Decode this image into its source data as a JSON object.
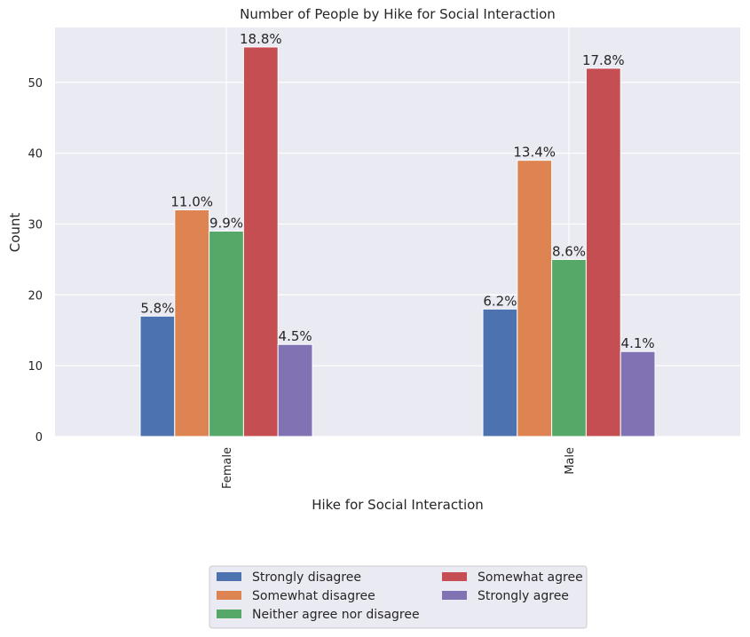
{
  "chart_data": {
    "type": "bar",
    "title": "Number of People by Hike for Social Interaction",
    "xlabel": "Hike for Social Interaction",
    "ylabel": "Count",
    "categories": [
      "Female",
      "Male"
    ],
    "ylim": [
      0,
      57.75
    ],
    "yticks": [
      "0",
      "10",
      "20",
      "30",
      "40",
      "50"
    ],
    "grid": true,
    "legend_position": "bottom-center",
    "series": [
      {
        "name": "Strongly disagree",
        "color": "#4c72b0",
        "values": [
          17,
          18
        ],
        "labels": [
          "5.8%",
          "6.2%"
        ]
      },
      {
        "name": "Somewhat disagree",
        "color": "#dd8452",
        "values": [
          32,
          39
        ],
        "labels": [
          "11.0%",
          "13.4%"
        ]
      },
      {
        "name": "Neither agree nor disagree",
        "color": "#55a868",
        "values": [
          29,
          25
        ],
        "labels": [
          "9.9%",
          "8.6%"
        ]
      },
      {
        "name": "Somewhat agree",
        "color": "#c44e52",
        "values": [
          55,
          52
        ],
        "labels": [
          "18.8%",
          "17.8%"
        ]
      },
      {
        "name": "Strongly agree",
        "color": "#8172b3",
        "values": [
          13,
          12
        ],
        "labels": [
          "4.5%",
          "4.1%"
        ]
      }
    ]
  }
}
